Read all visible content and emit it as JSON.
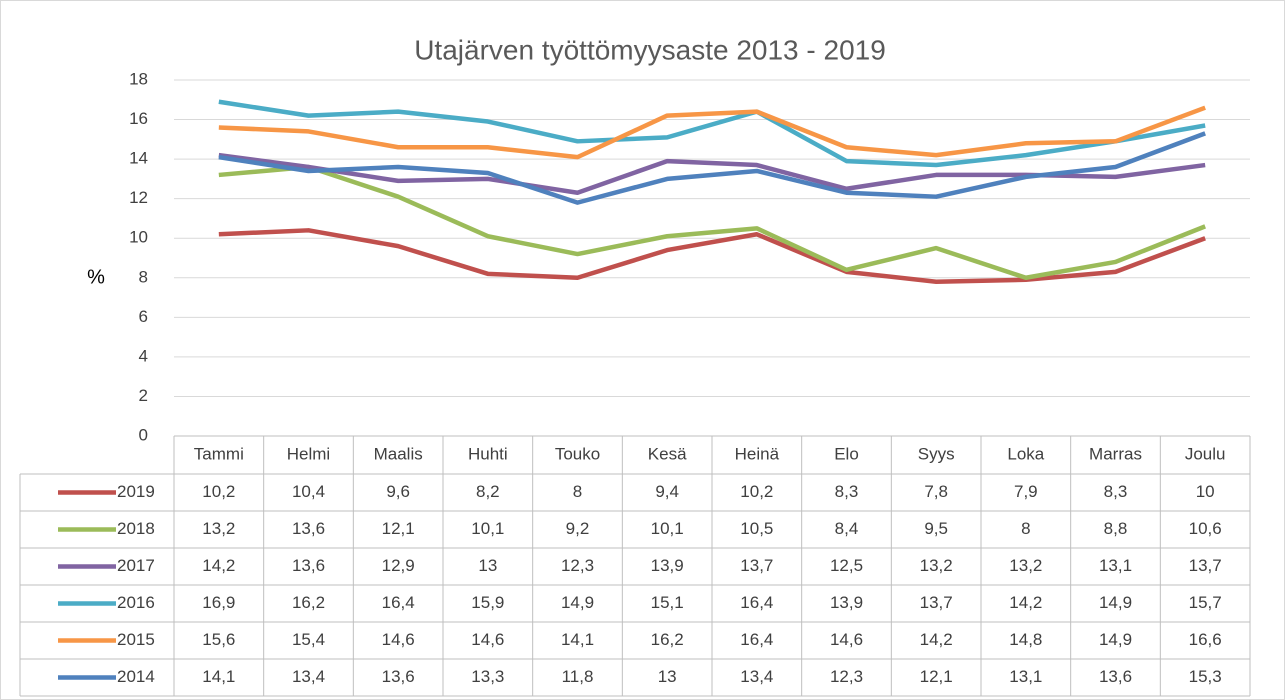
{
  "chart_data": {
    "type": "line",
    "title": "Utajärven työttömyysaste 2013 - 2019",
    "y_label": "%",
    "categories": [
      "Tammi",
      "Helmi",
      "Maalis",
      "Huhti",
      "Touko",
      "Kesä",
      "Heinä",
      "Elo",
      "Syys",
      "Loka",
      "Marras",
      "Joulu"
    ],
    "ylim": [
      0,
      18
    ],
    "yticks": [
      0,
      2,
      4,
      6,
      8,
      10,
      12,
      14,
      16,
      18
    ],
    "grid": true,
    "series": [
      {
        "name": "2019",
        "color": "#c0504d",
        "values": [
          10.2,
          10.4,
          9.6,
          8.2,
          8,
          9.4,
          10.2,
          8.3,
          7.8,
          7.9,
          8.3,
          10
        ],
        "value_labels": [
          "10,2",
          "10,4",
          "9,6",
          "8,2",
          "8",
          "9,4",
          "10,2",
          "8,3",
          "7,8",
          "7,9",
          "8,3",
          "10"
        ]
      },
      {
        "name": "2018",
        "color": "#9bbb59",
        "values": [
          13.2,
          13.6,
          12.1,
          10.1,
          9.2,
          10.1,
          10.5,
          8.4,
          9.5,
          8,
          8.8,
          10.6
        ],
        "value_labels": [
          "13,2",
          "13,6",
          "12,1",
          "10,1",
          "9,2",
          "10,1",
          "10,5",
          "8,4",
          "9,5",
          "8",
          "8,8",
          "10,6"
        ]
      },
      {
        "name": "2017",
        "color": "#8064a2",
        "values": [
          14.2,
          13.6,
          12.9,
          13,
          12.3,
          13.9,
          13.7,
          12.5,
          13.2,
          13.2,
          13.1,
          13.7
        ],
        "value_labels": [
          "14,2",
          "13,6",
          "12,9",
          "13",
          "12,3",
          "13,9",
          "13,7",
          "12,5",
          "13,2",
          "13,2",
          "13,1",
          "13,7"
        ]
      },
      {
        "name": "2016",
        "color": "#4bacc6",
        "values": [
          16.9,
          16.2,
          16.4,
          15.9,
          14.9,
          15.1,
          16.4,
          13.9,
          13.7,
          14.2,
          14.9,
          15.7
        ],
        "value_labels": [
          "16,9",
          "16,2",
          "16,4",
          "15,9",
          "14,9",
          "15,1",
          "16,4",
          "13,9",
          "13,7",
          "14,2",
          "14,9",
          "15,7"
        ]
      },
      {
        "name": "2015",
        "color": "#f79646",
        "values": [
          15.6,
          15.4,
          14.6,
          14.6,
          14.1,
          16.2,
          16.4,
          14.6,
          14.2,
          14.8,
          14.9,
          16.6
        ],
        "value_labels": [
          "15,6",
          "15,4",
          "14,6",
          "14,6",
          "14,1",
          "16,2",
          "16,4",
          "14,6",
          "14,2",
          "14,8",
          "14,9",
          "16,6"
        ]
      },
      {
        "name": "2014",
        "color": "#4f81bd",
        "values": [
          14.1,
          13.4,
          13.6,
          13.3,
          11.8,
          13,
          13.4,
          12.3,
          12.1,
          13.1,
          13.6,
          15.3
        ],
        "value_labels": [
          "14,1",
          "13,4",
          "13,6",
          "13,3",
          "11,8",
          "13",
          "13,4",
          "12,3",
          "12,1",
          "13,1",
          "13,6",
          "15,3"
        ]
      }
    ]
  }
}
